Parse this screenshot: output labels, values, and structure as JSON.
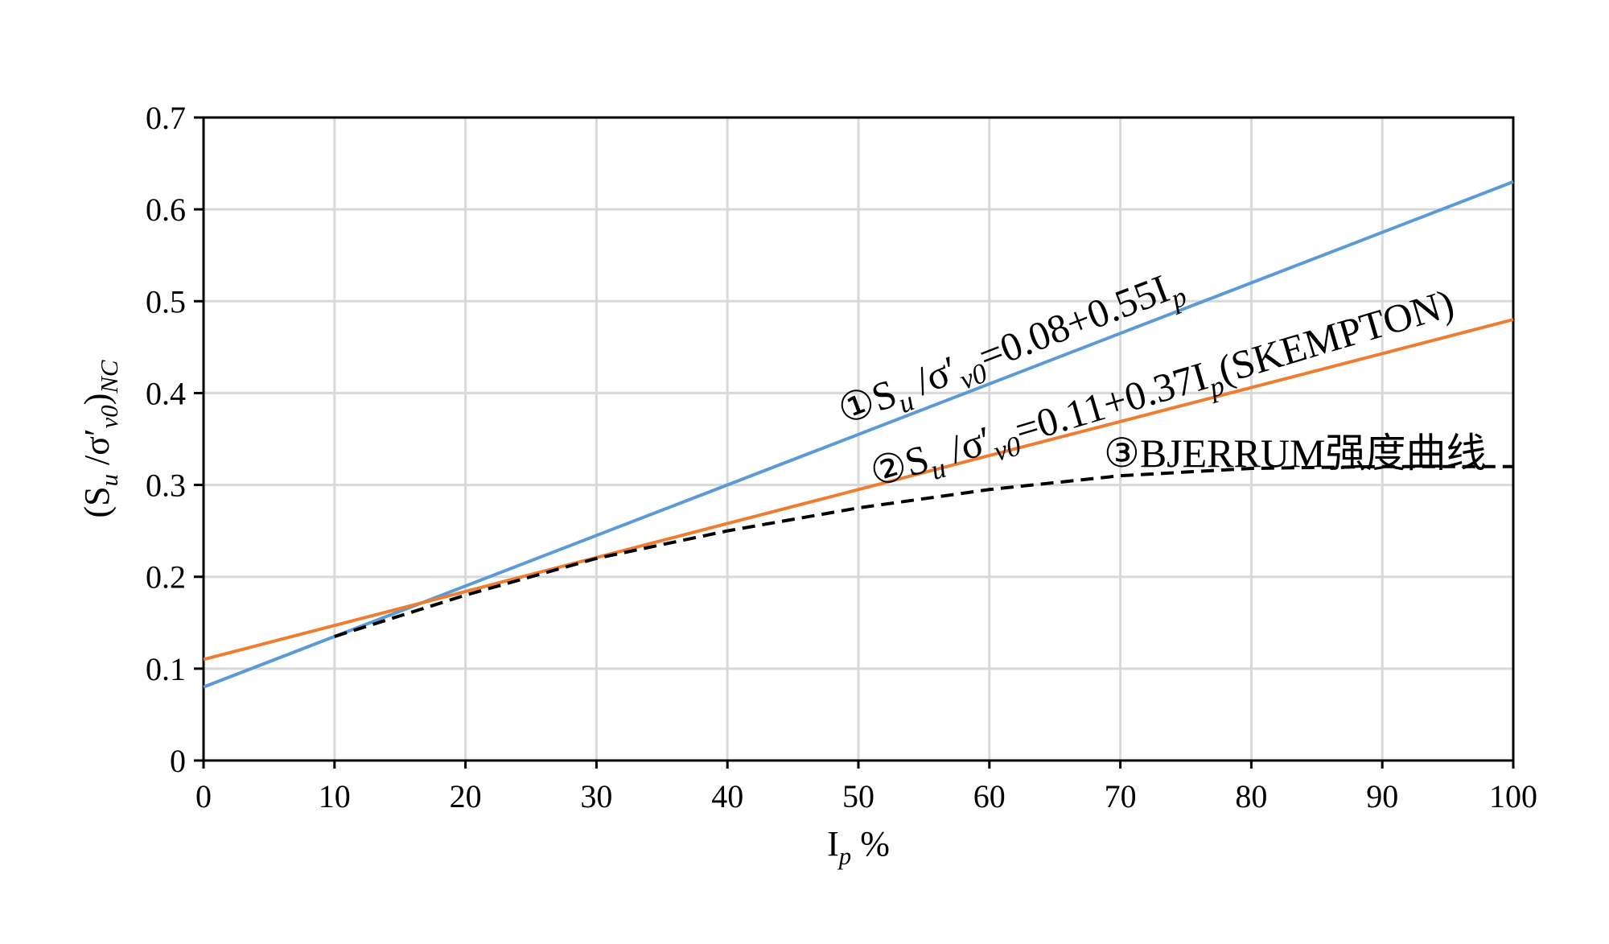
{
  "chart_data": {
    "type": "line",
    "x_label": [
      "I",
      "p",
      " %"
    ],
    "y_label": [
      "(S",
      "u",
      " /σ′",
      "v0",
      ")",
      "NC"
    ],
    "xlim": [
      0,
      100
    ],
    "xticks": [
      0,
      10,
      20,
      30,
      40,
      50,
      60,
      70,
      80,
      90,
      100
    ],
    "ylim": [
      0,
      0.7
    ],
    "yticks": [
      0,
      0.1,
      0.2,
      0.3,
      0.4,
      0.5,
      0.6,
      0.7
    ],
    "grid": true,
    "series": [
      {
        "color": "#5b9bd5",
        "dash": false,
        "x": [
          0,
          100
        ],
        "values": [
          0.08,
          0.63
        ]
      },
      {
        "color": "#ed7d31",
        "dash": false,
        "x": [
          0,
          100
        ],
        "values": [
          0.11,
          0.48
        ]
      },
      {
        "color": "#000000",
        "dash": true,
        "x": [
          10,
          20,
          30,
          40,
          50,
          60,
          70,
          80,
          90,
          100
        ],
        "values": [
          0.135,
          0.18,
          0.22,
          0.25,
          0.275,
          0.295,
          0.31,
          0.318,
          0.32,
          0.32
        ]
      }
    ],
    "annotations": [
      [
        "①S",
        "u",
        " /σ′",
        "v0",
        "=0.08+0.55I",
        "p"
      ],
      [
        "②S",
        "u",
        " /σ′",
        "v0",
        "=0.11+0.37I",
        "p",
        "(SKEMPTON)"
      ],
      [
        "③BJERRUM强度曲线"
      ]
    ]
  }
}
